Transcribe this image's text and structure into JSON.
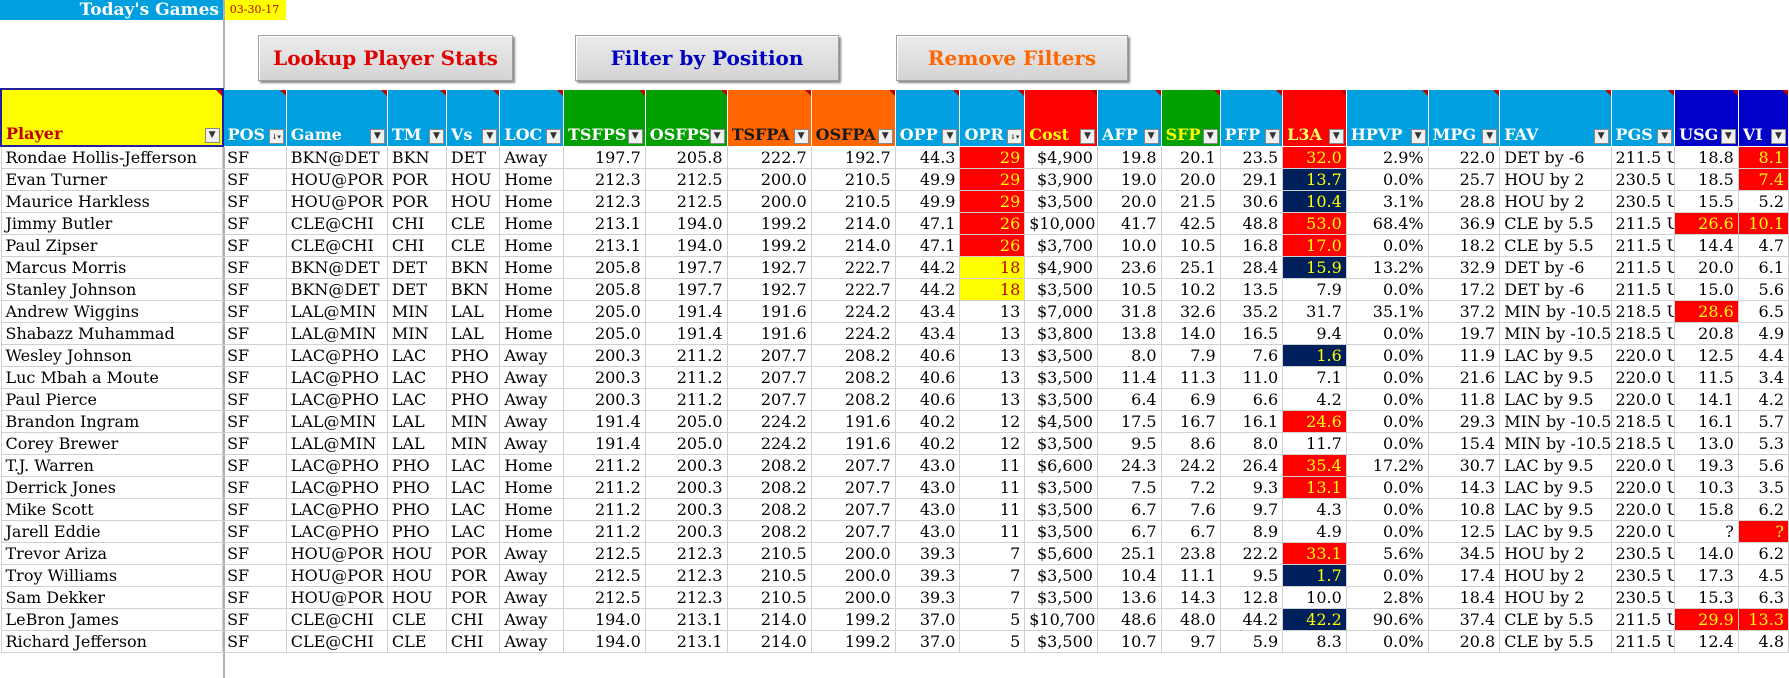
{
  "header": {
    "title": "Today's Games",
    "date": "03-30-17"
  },
  "buttons": {
    "lookup": {
      "label": "Lookup Player Stats",
      "color": "#e00000"
    },
    "filter": {
      "label": "Filter by Position",
      "color": "#0000c0"
    },
    "remove": {
      "label": "Remove Filters",
      "color": "#ff6600"
    }
  },
  "columns": [
    {
      "key": "player",
      "label": "Player",
      "cls": "th-player",
      "w": 195,
      "num": false,
      "filter_icon": "dropdown-arrow"
    },
    {
      "key": "pos",
      "label": "POS",
      "cls": "c-blue",
      "w": 56,
      "num": false,
      "filter_icon": "sort-descending"
    },
    {
      "key": "game",
      "label": "Game",
      "cls": "c-blue",
      "w": 89,
      "num": false,
      "filter_icon": "dropdown-arrow"
    },
    {
      "key": "tm",
      "label": "TM",
      "cls": "c-blue",
      "w": 52,
      "num": false,
      "filter_icon": "dropdown-arrow"
    },
    {
      "key": "vs",
      "label": "Vs",
      "cls": "c-blue",
      "w": 47,
      "num": false,
      "filter_icon": "dropdown-arrow"
    },
    {
      "key": "loc",
      "label": "LOC",
      "cls": "c-blue",
      "w": 56,
      "num": false,
      "filter_icon": "dropdown-arrow"
    },
    {
      "key": "tsfps",
      "label": "TSFPS",
      "cls": "c-green",
      "w": 72,
      "num": true,
      "filter_icon": "dropdown-arrow"
    },
    {
      "key": "osfps",
      "label": "OSFPS",
      "cls": "c-green",
      "w": 72,
      "num": true,
      "filter_icon": "dropdown-arrow"
    },
    {
      "key": "tsfpa",
      "label": "TSFPA",
      "cls": "c-orange th-tsfpa",
      "w": 74,
      "num": true,
      "filter_icon": "dropdown-arrow"
    },
    {
      "key": "osfpa",
      "label": "OSFPA",
      "cls": "c-orange th-osfpa",
      "w": 74,
      "num": true,
      "filter_icon": "dropdown-arrow"
    },
    {
      "key": "opp",
      "label": "OPP",
      "cls": "c-blue",
      "w": 57,
      "num": true,
      "filter_icon": "dropdown-arrow"
    },
    {
      "key": "opr",
      "label": "OPR",
      "cls": "c-blue",
      "w": 57,
      "num": true,
      "filter_icon": "sort-descending"
    },
    {
      "key": "cost",
      "label": "Cost",
      "cls": "c-red th-cost",
      "w": 64,
      "num": true,
      "filter_icon": "dropdown-arrow"
    },
    {
      "key": "afp",
      "label": "AFP",
      "cls": "c-blue",
      "w": 56,
      "num": true,
      "filter_icon": "dropdown-arrow"
    },
    {
      "key": "sfp",
      "label": "SFP",
      "cls": "c-green th-sfp",
      "w": 52,
      "num": true,
      "filter_icon": "dropdown-arrow"
    },
    {
      "key": "pfp",
      "label": "PFP",
      "cls": "c-blue",
      "w": 55,
      "num": true,
      "filter_icon": "dropdown-arrow"
    },
    {
      "key": "l3a",
      "label": "L3A",
      "cls": "c-red th-l3a",
      "w": 56,
      "num": true,
      "filter_icon": "dropdown-arrow"
    },
    {
      "key": "hpvp",
      "label": "HPVP",
      "cls": "c-blue",
      "w": 72,
      "num": true,
      "filter_icon": "dropdown-arrow"
    },
    {
      "key": "mpg",
      "label": "MPG",
      "cls": "c-blue",
      "w": 63,
      "num": true,
      "filter_icon": "dropdown-arrow"
    },
    {
      "key": "fav",
      "label": "FAV",
      "cls": "c-blue",
      "w": 98,
      "num": false,
      "filter_icon": "dropdown-arrow"
    },
    {
      "key": "pgs",
      "label": "PGS",
      "cls": "c-blue",
      "w": 56,
      "num": false,
      "filter_icon": "dropdown-arrow"
    },
    {
      "key": "usg",
      "label": "USG",
      "cls": "c-darkblue",
      "w": 56,
      "num": true,
      "filter_icon": "dropdown-arrow"
    },
    {
      "key": "vi",
      "label": "VI",
      "cls": "c-darkblue",
      "w": 44,
      "num": true,
      "filter_icon": "dropdown-arrow"
    }
  ],
  "rows": [
    {
      "player": "Rondae Hollis-Jefferson",
      "pos": "SF",
      "game": "BKN@DET",
      "tm": "BKN",
      "vs": "DET",
      "loc": "Away",
      "tsfps": "197.7",
      "osfps": "205.8",
      "tsfpa": "222.7",
      "osfpa": "192.7",
      "opp": "44.3",
      "opr": "29",
      "cost": "$4,900",
      "afp": "19.8",
      "sfp": "20.1",
      "pfp": "23.5",
      "l3a": "32.0",
      "hpvp": "2.9%",
      "mpg": "22.0",
      "fav": "DET by -6",
      "pgs": "211.5 U",
      "usg": "18.8",
      "vi": "8.1",
      "hl": {
        "opr": "red",
        "l3a": "red",
        "vi": "red"
      }
    },
    {
      "player": "Evan Turner",
      "pos": "SF",
      "game": "HOU@POR",
      "tm": "POR",
      "vs": "HOU",
      "loc": "Home",
      "tsfps": "212.3",
      "osfps": "212.5",
      "tsfpa": "200.0",
      "osfpa": "210.5",
      "opp": "49.9",
      "opr": "29",
      "cost": "$3,900",
      "afp": "19.0",
      "sfp": "20.0",
      "pfp": "29.1",
      "l3a": "13.7",
      "hpvp": "0.0%",
      "mpg": "25.7",
      "fav": "HOU by 2",
      "pgs": "230.5 U",
      "usg": "18.5",
      "vi": "7.4",
      "hl": {
        "opr": "red",
        "l3a": "navy",
        "vi": "red"
      }
    },
    {
      "player": "Maurice Harkless",
      "pos": "SF",
      "game": "HOU@POR",
      "tm": "POR",
      "vs": "HOU",
      "loc": "Home",
      "tsfps": "212.3",
      "osfps": "212.5",
      "tsfpa": "200.0",
      "osfpa": "210.5",
      "opp": "49.9",
      "opr": "29",
      "cost": "$3,500",
      "afp": "20.0",
      "sfp": "21.5",
      "pfp": "30.6",
      "l3a": "10.4",
      "hpvp": "3.1%",
      "mpg": "28.8",
      "fav": "HOU by 2",
      "pgs": "230.5 U",
      "usg": "15.5",
      "vi": "5.2",
      "hl": {
        "opr": "red",
        "l3a": "navy"
      }
    },
    {
      "player": "Jimmy Butler",
      "pos": "SF",
      "game": "CLE@CHI",
      "tm": "CHI",
      "vs": "CLE",
      "loc": "Home",
      "tsfps": "213.1",
      "osfps": "194.0",
      "tsfpa": "199.2",
      "osfpa": "214.0",
      "opp": "47.1",
      "opr": "26",
      "cost": "$10,000",
      "afp": "41.7",
      "sfp": "42.5",
      "pfp": "48.8",
      "l3a": "53.0",
      "hpvp": "68.4%",
      "mpg": "36.9",
      "fav": "CLE by 5.5",
      "pgs": "211.5 U",
      "usg": "26.6",
      "vi": "10.1",
      "hl": {
        "opr": "red",
        "l3a": "red",
        "usg": "red",
        "vi": "red"
      }
    },
    {
      "player": "Paul Zipser",
      "pos": "SF",
      "game": "CLE@CHI",
      "tm": "CHI",
      "vs": "CLE",
      "loc": "Home",
      "tsfps": "213.1",
      "osfps": "194.0",
      "tsfpa": "199.2",
      "osfpa": "214.0",
      "opp": "47.1",
      "opr": "26",
      "cost": "$3,700",
      "afp": "10.0",
      "sfp": "10.5",
      "pfp": "16.8",
      "l3a": "17.0",
      "hpvp": "0.0%",
      "mpg": "18.2",
      "fav": "CLE by 5.5",
      "pgs": "211.5 U",
      "usg": "14.4",
      "vi": "4.7",
      "hl": {
        "opr": "red",
        "l3a": "red"
      }
    },
    {
      "player": "Marcus Morris",
      "pos": "SF",
      "game": "BKN@DET",
      "tm": "DET",
      "vs": "BKN",
      "loc": "Home",
      "tsfps": "205.8",
      "osfps": "197.7",
      "tsfpa": "192.7",
      "osfpa": "222.7",
      "opp": "44.2",
      "opr": "18",
      "cost": "$4,900",
      "afp": "23.6",
      "sfp": "25.1",
      "pfp": "28.4",
      "l3a": "15.9",
      "hpvp": "13.2%",
      "mpg": "32.9",
      "fav": "DET by -6",
      "pgs": "211.5 U",
      "usg": "20.0",
      "vi": "6.1",
      "hl": {
        "opr": "yellow",
        "l3a": "navy"
      }
    },
    {
      "player": "Stanley Johnson",
      "pos": "SF",
      "game": "BKN@DET",
      "tm": "DET",
      "vs": "BKN",
      "loc": "Home",
      "tsfps": "205.8",
      "osfps": "197.7",
      "tsfpa": "192.7",
      "osfpa": "222.7",
      "opp": "44.2",
      "opr": "18",
      "cost": "$3,500",
      "afp": "10.5",
      "sfp": "10.2",
      "pfp": "13.5",
      "l3a": "7.9",
      "hpvp": "0.0%",
      "mpg": "17.2",
      "fav": "DET by -6",
      "pgs": "211.5 U",
      "usg": "15.0",
      "vi": "5.6",
      "hl": {
        "opr": "yellow"
      }
    },
    {
      "player": "Andrew Wiggins",
      "pos": "SF",
      "game": "LAL@MIN",
      "tm": "MIN",
      "vs": "LAL",
      "loc": "Home",
      "tsfps": "205.0",
      "osfps": "191.4",
      "tsfpa": "191.6",
      "osfpa": "224.2",
      "opp": "43.4",
      "opr": "13",
      "cost": "$7,000",
      "afp": "31.8",
      "sfp": "32.6",
      "pfp": "35.2",
      "l3a": "31.7",
      "hpvp": "35.1%",
      "mpg": "37.2",
      "fav": "MIN by -10.5",
      "pgs": "218.5 U",
      "usg": "28.6",
      "vi": "6.5",
      "hl": {
        "usg": "red"
      }
    },
    {
      "player": "Shabazz Muhammad",
      "pos": "SF",
      "game": "LAL@MIN",
      "tm": "MIN",
      "vs": "LAL",
      "loc": "Home",
      "tsfps": "205.0",
      "osfps": "191.4",
      "tsfpa": "191.6",
      "osfpa": "224.2",
      "opp": "43.4",
      "opr": "13",
      "cost": "$3,800",
      "afp": "13.8",
      "sfp": "14.0",
      "pfp": "16.5",
      "l3a": "9.4",
      "hpvp": "0.0%",
      "mpg": "19.7",
      "fav": "MIN by -10.5",
      "pgs": "218.5 U",
      "usg": "20.8",
      "vi": "4.9",
      "hl": {}
    },
    {
      "player": "Wesley Johnson",
      "pos": "SF",
      "game": "LAC@PHO",
      "tm": "LAC",
      "vs": "PHO",
      "loc": "Away",
      "tsfps": "200.3",
      "osfps": "211.2",
      "tsfpa": "207.7",
      "osfpa": "208.2",
      "opp": "40.6",
      "opr": "13",
      "cost": "$3,500",
      "afp": "8.0",
      "sfp": "7.9",
      "pfp": "7.6",
      "l3a": "1.6",
      "hpvp": "0.0%",
      "mpg": "11.9",
      "fav": "LAC by 9.5",
      "pgs": "220.0 U",
      "usg": "12.5",
      "vi": "4.4",
      "hl": {
        "l3a": "navy"
      }
    },
    {
      "player": "Luc Mbah a Moute",
      "pos": "SF",
      "game": "LAC@PHO",
      "tm": "LAC",
      "vs": "PHO",
      "loc": "Away",
      "tsfps": "200.3",
      "osfps": "211.2",
      "tsfpa": "207.7",
      "osfpa": "208.2",
      "opp": "40.6",
      "opr": "13",
      "cost": "$3,500",
      "afp": "11.4",
      "sfp": "11.3",
      "pfp": "11.0",
      "l3a": "7.1",
      "hpvp": "0.0%",
      "mpg": "21.6",
      "fav": "LAC by 9.5",
      "pgs": "220.0 U",
      "usg": "11.5",
      "vi": "3.4",
      "hl": {}
    },
    {
      "player": "Paul Pierce",
      "pos": "SF",
      "game": "LAC@PHO",
      "tm": "LAC",
      "vs": "PHO",
      "loc": "Away",
      "tsfps": "200.3",
      "osfps": "211.2",
      "tsfpa": "207.7",
      "osfpa": "208.2",
      "opp": "40.6",
      "opr": "13",
      "cost": "$3,500",
      "afp": "6.4",
      "sfp": "6.9",
      "pfp": "6.6",
      "l3a": "4.2",
      "hpvp": "0.0%",
      "mpg": "11.8",
      "fav": "LAC by 9.5",
      "pgs": "220.0 U",
      "usg": "14.1",
      "vi": "4.2",
      "hl": {}
    },
    {
      "player": "Brandon Ingram",
      "pos": "SF",
      "game": "LAL@MIN",
      "tm": "LAL",
      "vs": "MIN",
      "loc": "Away",
      "tsfps": "191.4",
      "osfps": "205.0",
      "tsfpa": "224.2",
      "osfpa": "191.6",
      "opp": "40.2",
      "opr": "12",
      "cost": "$4,500",
      "afp": "17.5",
      "sfp": "16.7",
      "pfp": "16.1",
      "l3a": "24.6",
      "hpvp": "0.0%",
      "mpg": "29.3",
      "fav": "MIN by -10.5",
      "pgs": "218.5 U",
      "usg": "16.1",
      "vi": "5.7",
      "hl": {
        "l3a": "red"
      }
    },
    {
      "player": "Corey Brewer",
      "pos": "SF",
      "game": "LAL@MIN",
      "tm": "LAL",
      "vs": "MIN",
      "loc": "Away",
      "tsfps": "191.4",
      "osfps": "205.0",
      "tsfpa": "224.2",
      "osfpa": "191.6",
      "opp": "40.2",
      "opr": "12",
      "cost": "$3,500",
      "afp": "9.5",
      "sfp": "8.6",
      "pfp": "8.0",
      "l3a": "11.7",
      "hpvp": "0.0%",
      "mpg": "15.4",
      "fav": "MIN by -10.5",
      "pgs": "218.5 U",
      "usg": "13.0",
      "vi": "5.3",
      "hl": {}
    },
    {
      "player": "T.J. Warren",
      "pos": "SF",
      "game": "LAC@PHO",
      "tm": "PHO",
      "vs": "LAC",
      "loc": "Home",
      "tsfps": "211.2",
      "osfps": "200.3",
      "tsfpa": "208.2",
      "osfpa": "207.7",
      "opp": "43.0",
      "opr": "11",
      "cost": "$6,600",
      "afp": "24.3",
      "sfp": "24.2",
      "pfp": "26.4",
      "l3a": "35.4",
      "hpvp": "17.2%",
      "mpg": "30.7",
      "fav": "LAC by 9.5",
      "pgs": "220.0 U",
      "usg": "19.3",
      "vi": "5.6",
      "hl": {
        "l3a": "red"
      }
    },
    {
      "player": "Derrick Jones",
      "pos": "SF",
      "game": "LAC@PHO",
      "tm": "PHO",
      "vs": "LAC",
      "loc": "Home",
      "tsfps": "211.2",
      "osfps": "200.3",
      "tsfpa": "208.2",
      "osfpa": "207.7",
      "opp": "43.0",
      "opr": "11",
      "cost": "$3,500",
      "afp": "7.5",
      "sfp": "7.2",
      "pfp": "9.3",
      "l3a": "13.1",
      "hpvp": "0.0%",
      "mpg": "14.3",
      "fav": "LAC by 9.5",
      "pgs": "220.0 U",
      "usg": "10.3",
      "vi": "3.5",
      "hl": {
        "l3a": "red"
      }
    },
    {
      "player": "Mike Scott",
      "pos": "SF",
      "game": "LAC@PHO",
      "tm": "PHO",
      "vs": "LAC",
      "loc": "Home",
      "tsfps": "211.2",
      "osfps": "200.3",
      "tsfpa": "208.2",
      "osfpa": "207.7",
      "opp": "43.0",
      "opr": "11",
      "cost": "$3,500",
      "afp": "6.7",
      "sfp": "7.6",
      "pfp": "9.7",
      "l3a": "4.3",
      "hpvp": "0.0%",
      "mpg": "10.8",
      "fav": "LAC by 9.5",
      "pgs": "220.0 U",
      "usg": "15.8",
      "vi": "6.2",
      "hl": {}
    },
    {
      "player": "Jarell Eddie",
      "pos": "SF",
      "game": "LAC@PHO",
      "tm": "PHO",
      "vs": "LAC",
      "loc": "Home",
      "tsfps": "211.2",
      "osfps": "200.3",
      "tsfpa": "208.2",
      "osfpa": "207.7",
      "opp": "43.0",
      "opr": "11",
      "cost": "$3,500",
      "afp": "6.7",
      "sfp": "6.7",
      "pfp": "8.9",
      "l3a": "4.9",
      "hpvp": "0.0%",
      "mpg": "12.5",
      "fav": "LAC by 9.5",
      "pgs": "220.0 U",
      "usg": "?",
      "vi": "?",
      "hl": {
        "vi": "red"
      }
    },
    {
      "player": "Trevor Ariza",
      "pos": "SF",
      "game": "HOU@POR",
      "tm": "HOU",
      "vs": "POR",
      "loc": "Away",
      "tsfps": "212.5",
      "osfps": "212.3",
      "tsfpa": "210.5",
      "osfpa": "200.0",
      "opp": "39.3",
      "opr": "7",
      "cost": "$5,600",
      "afp": "25.1",
      "sfp": "23.8",
      "pfp": "22.2",
      "l3a": "33.1",
      "hpvp": "5.6%",
      "mpg": "34.5",
      "fav": "HOU by 2",
      "pgs": "230.5 U",
      "usg": "14.0",
      "vi": "6.2",
      "hl": {
        "l3a": "red"
      }
    },
    {
      "player": "Troy Williams",
      "pos": "SF",
      "game": "HOU@POR",
      "tm": "HOU",
      "vs": "POR",
      "loc": "Away",
      "tsfps": "212.5",
      "osfps": "212.3",
      "tsfpa": "210.5",
      "osfpa": "200.0",
      "opp": "39.3",
      "opr": "7",
      "cost": "$3,500",
      "afp": "10.4",
      "sfp": "11.1",
      "pfp": "9.5",
      "l3a": "1.7",
      "hpvp": "0.0%",
      "mpg": "17.4",
      "fav": "HOU by 2",
      "pgs": "230.5 U",
      "usg": "17.3",
      "vi": "4.5",
      "hl": {
        "l3a": "navy"
      }
    },
    {
      "player": "Sam Dekker",
      "pos": "SF",
      "game": "HOU@POR",
      "tm": "HOU",
      "vs": "POR",
      "loc": "Away",
      "tsfps": "212.5",
      "osfps": "212.3",
      "tsfpa": "210.5",
      "osfpa": "200.0",
      "opp": "39.3",
      "opr": "7",
      "cost": "$3,500",
      "afp": "13.6",
      "sfp": "14.3",
      "pfp": "12.8",
      "l3a": "10.0",
      "hpvp": "2.8%",
      "mpg": "18.4",
      "fav": "HOU by 2",
      "pgs": "230.5 U",
      "usg": "15.3",
      "vi": "6.3",
      "hl": {}
    },
    {
      "player": "LeBron James",
      "pos": "SF",
      "game": "CLE@CHI",
      "tm": "CLE",
      "vs": "CHI",
      "loc": "Away",
      "tsfps": "194.0",
      "osfps": "213.1",
      "tsfpa": "214.0",
      "osfpa": "199.2",
      "opp": "37.0",
      "opr": "5",
      "cost": "$10,700",
      "afp": "48.6",
      "sfp": "48.0",
      "pfp": "44.2",
      "l3a": "42.2",
      "hpvp": "90.6%",
      "mpg": "37.4",
      "fav": "CLE by 5.5",
      "pgs": "211.5 U",
      "usg": "29.9",
      "vi": "13.3",
      "hl": {
        "l3a": "navy",
        "usg": "red",
        "vi": "red"
      }
    },
    {
      "player": "Richard Jefferson",
      "pos": "SF",
      "game": "CLE@CHI",
      "tm": "CLE",
      "vs": "CHI",
      "loc": "Away",
      "tsfps": "194.0",
      "osfps": "213.1",
      "tsfpa": "214.0",
      "osfpa": "199.2",
      "opp": "37.0",
      "opr": "5",
      "cost": "$3,500",
      "afp": "10.7",
      "sfp": "9.7",
      "pfp": "5.9",
      "l3a": "8.3",
      "hpvp": "0.0%",
      "mpg": "20.8",
      "fav": "CLE by 5.5",
      "pgs": "211.5 U",
      "usg": "12.4",
      "vi": "4.8",
      "hl": {}
    }
  ]
}
